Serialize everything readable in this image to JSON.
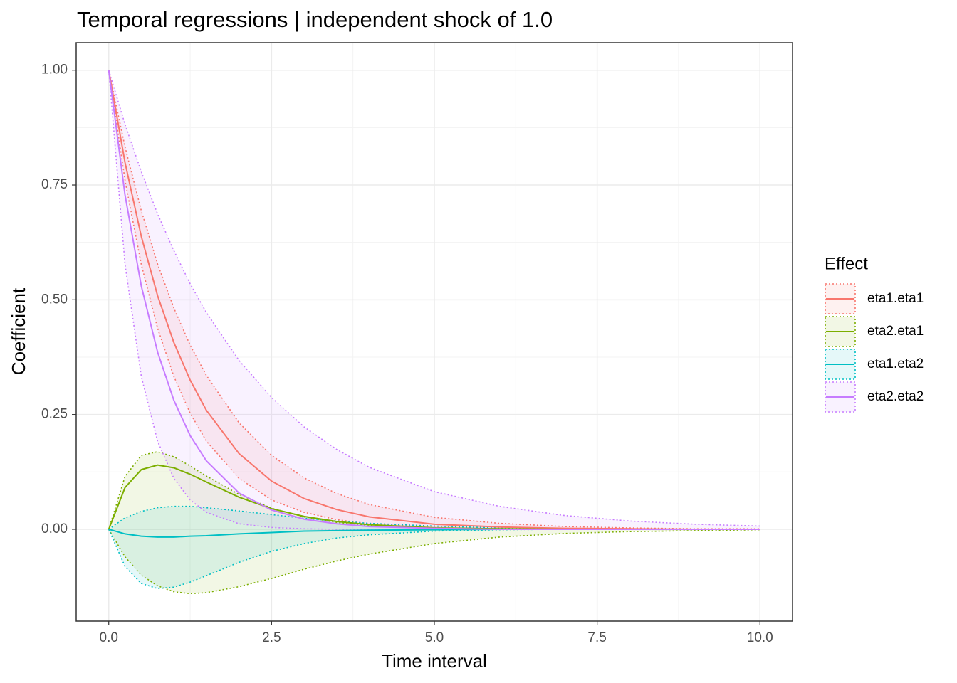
{
  "chart_data": {
    "type": "line",
    "title": "Temporal regressions | independent shock of 1.0",
    "x_label": "Time interval",
    "y_label": "Coefficient",
    "legend_title": "Effect",
    "grid": true,
    "xlim": [
      -0.5,
      10.5
    ],
    "ylim": [
      -0.2,
      1.06
    ],
    "xticks": [
      {
        "value": 0,
        "label": "0.0"
      },
      2.5,
      {
        "value": 5,
        "label": "5.0"
      },
      7.5,
      {
        "value": 10,
        "label": "10.0"
      }
    ],
    "yticks": [
      {
        "value": 0,
        "label": "0.00"
      },
      0.25,
      {
        "value": 0.5,
        "label": "0.50"
      },
      0.75,
      {
        "value": 1,
        "label": "1.00"
      }
    ],
    "x": [
      0,
      0.25,
      0.5,
      0.75,
      1,
      1.25,
      1.5,
      2,
      2.5,
      3,
      3.5,
      4,
      5,
      6,
      7,
      8,
      9,
      10
    ],
    "series": [
      {
        "name": "eta1.eta1",
        "color": "#F8766D",
        "values": [
          1,
          0.799,
          0.638,
          0.509,
          0.407,
          0.325,
          0.259,
          0.165,
          0.105,
          0.067,
          0.043,
          0.027,
          0.011,
          0.005,
          0.002,
          0.001,
          0,
          0
        ],
        "lower": [
          1,
          0.76,
          0.577,
          0.438,
          0.333,
          0.253,
          0.192,
          0.111,
          0.064,
          0.037,
          0.021,
          0.012,
          0.004,
          0.001,
          0,
          0,
          0,
          0
        ],
        "upper": [
          1,
          0.833,
          0.694,
          0.578,
          0.482,
          0.401,
          0.335,
          0.232,
          0.161,
          0.112,
          0.078,
          0.054,
          0.026,
          0.013,
          0.006,
          0.003,
          0.001,
          0.001
        ]
      },
      {
        "name": "eta2.eta1",
        "color": "#7CAE00",
        "values": [
          0,
          0.091,
          0.13,
          0.14,
          0.134,
          0.12,
          0.103,
          0.07,
          0.045,
          0.028,
          0.017,
          0.01,
          0.003,
          0.001,
          0,
          0,
          0,
          0
        ],
        "lower": [
          0,
          -0.06,
          -0.1,
          -0.123,
          -0.136,
          -0.14,
          -0.138,
          -0.125,
          -0.107,
          -0.087,
          -0.069,
          -0.054,
          -0.031,
          -0.017,
          -0.009,
          -0.005,
          -0.003,
          -0.001
        ],
        "upper": [
          0,
          0.115,
          0.161,
          0.169,
          0.158,
          0.138,
          0.116,
          0.076,
          0.046,
          0.027,
          0.015,
          0.009,
          0.003,
          0.001,
          0,
          0,
          0,
          0
        ]
      },
      {
        "name": "eta1.eta2",
        "color": "#00BFC4",
        "values": [
          0,
          -0.01,
          -0.015,
          -0.017,
          -0.017,
          -0.015,
          -0.014,
          -0.01,
          -0.007,
          -0.004,
          -0.003,
          -0.002,
          -0.001,
          0,
          0,
          0,
          0,
          0
        ],
        "lower": [
          0,
          -0.081,
          -0.118,
          -0.129,
          -0.126,
          -0.115,
          -0.101,
          -0.072,
          -0.048,
          -0.031,
          -0.019,
          -0.012,
          -0.004,
          -0.001,
          0,
          0,
          0,
          0
        ],
        "upper": [
          0,
          0.025,
          0.039,
          0.047,
          0.05,
          0.05,
          0.047,
          0.04,
          0.032,
          0.024,
          0.018,
          0.013,
          0.007,
          0.003,
          0.001,
          0.001,
          0,
          0
        ]
      },
      {
        "name": "eta2.eta2",
        "color": "#C77CFF",
        "values": [
          1,
          0.728,
          0.53,
          0.386,
          0.281,
          0.204,
          0.149,
          0.079,
          0.042,
          0.022,
          0.012,
          0.006,
          0.002,
          0,
          0,
          0,
          0,
          0
        ],
        "lower": [
          1,
          0.577,
          0.333,
          0.192,
          0.111,
          0.064,
          0.037,
          0.012,
          0.004,
          0.001,
          0,
          0,
          0,
          0,
          0,
          0,
          0,
          0
        ],
        "upper": [
          1,
          0.882,
          0.779,
          0.687,
          0.607,
          0.535,
          0.472,
          0.368,
          0.287,
          0.223,
          0.174,
          0.135,
          0.082,
          0.05,
          0.03,
          0.018,
          0.011,
          0.007
        ]
      }
    ]
  }
}
